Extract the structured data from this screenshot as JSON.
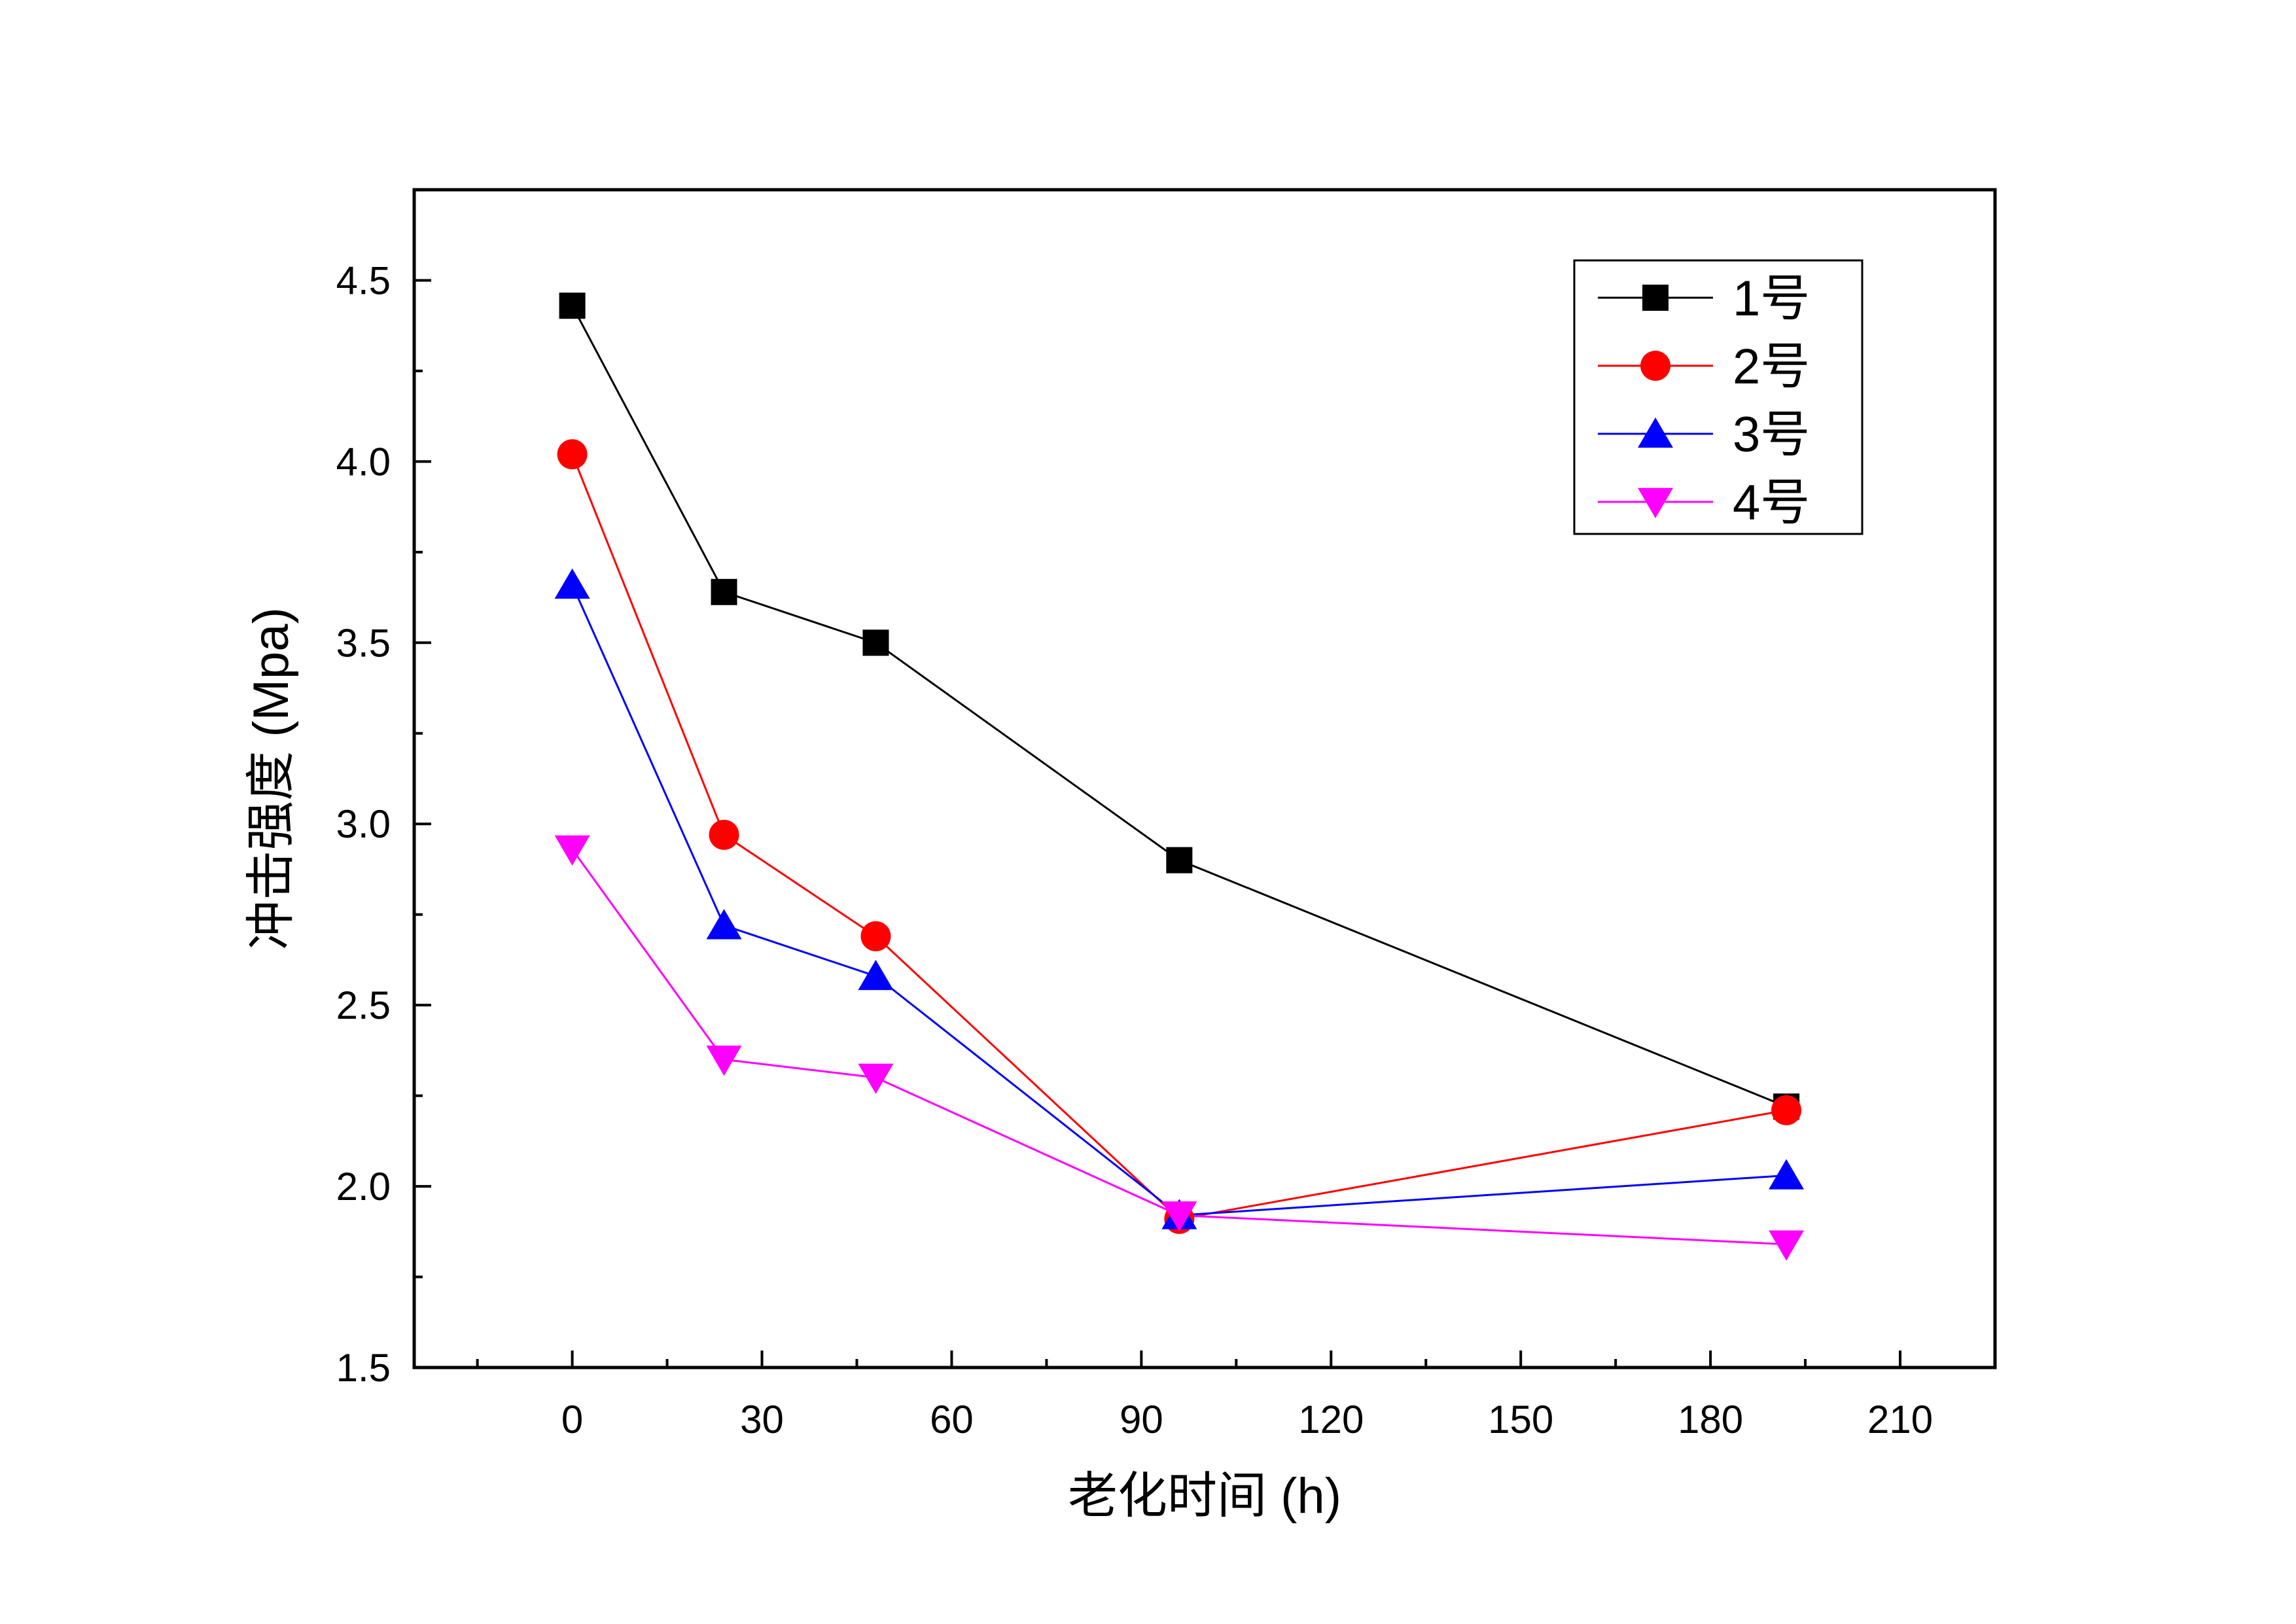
{
  "chart_data": {
    "type": "line",
    "title": "",
    "xlabel": "老化时间 (h)",
    "ylabel": "冲击强度 (Mpa)",
    "xlim": [
      -25,
      225
    ],
    "ylim": [
      1.5,
      4.75
    ],
    "xticks": [
      0,
      30,
      60,
      90,
      120,
      150,
      180,
      210
    ],
    "yticks": [
      1.5,
      2.0,
      2.5,
      3.0,
      3.5,
      4.0,
      4.5
    ],
    "xtick_labels": [
      "0",
      "30",
      "60",
      "90",
      "120",
      "150",
      "180",
      "210"
    ],
    "ytick_labels": [
      "1.5",
      "2.0",
      "2.5",
      "3.0",
      "3.5",
      "4.0",
      "4.5"
    ],
    "x": [
      0,
      24,
      48,
      96,
      192
    ],
    "series": [
      {
        "name": "1号",
        "values": [
          4.43,
          3.64,
          3.5,
          2.9,
          2.22
        ],
        "color": "#000000",
        "marker": "square"
      },
      {
        "name": "2号",
        "values": [
          4.02,
          2.97,
          2.69,
          1.91,
          2.21
        ],
        "color": "#ff0000",
        "marker": "circle"
      },
      {
        "name": "3号",
        "values": [
          3.66,
          2.72,
          2.58,
          1.92,
          2.03
        ],
        "color": "#0000ff",
        "marker": "triangle-up"
      },
      {
        "name": "4号",
        "values": [
          2.93,
          2.35,
          2.3,
          1.92,
          1.84
        ],
        "color": "#ff00ff",
        "marker": "triangle-down"
      }
    ],
    "grid": false,
    "legend_position": "top-right"
  }
}
